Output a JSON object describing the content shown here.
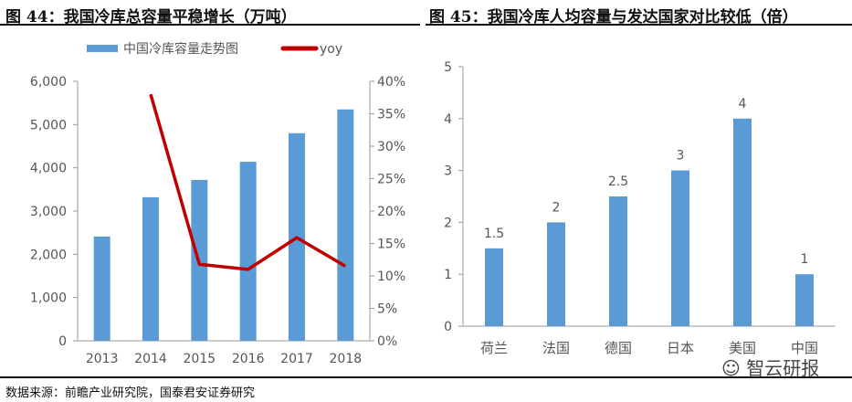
{
  "left": {
    "title": "图 44：我国冷库总容量平稳增长（万吨）",
    "chart_data": {
      "type": "bar",
      "categories": [
        "2013",
        "2014",
        "2015",
        "2016",
        "2017",
        "2018"
      ],
      "series": [
        {
          "name": "中国冷库容量走势图",
          "type": "bar",
          "axis": "left",
          "color": "#5B9BD5",
          "values": [
            2411,
            3320,
            3720,
            4140,
            4800,
            5350
          ]
        },
        {
          "name": "yoy",
          "type": "line",
          "axis": "right",
          "color": "#C00000",
          "values": [
            null,
            38,
            11.8,
            11,
            15.9,
            11.5
          ]
        }
      ],
      "ylim": [
        0,
        6000
      ],
      "yticks": [
        "0",
        "1,000",
        "2,000",
        "3,000",
        "4,000",
        "5,000",
        "6,000"
      ],
      "y2lim": [
        0,
        40
      ],
      "y2ticks": [
        "0%",
        "5%",
        "10%",
        "15%",
        "20%",
        "25%",
        "30%",
        "35%",
        "40%"
      ],
      "legend": "top"
    }
  },
  "right": {
    "title": "图 45：我国冷库人均容量与发达国家对比较低（倍）",
    "chart_data": {
      "type": "bar",
      "categories": [
        "荷兰",
        "法国",
        "德国",
        "日本",
        "美国",
        "中国"
      ],
      "values": [
        1.5,
        2,
        2.5,
        3,
        4,
        1
      ],
      "labels": [
        "1.5",
        "2",
        "2.5",
        "3",
        "4",
        "1"
      ],
      "color": "#5B9BD5",
      "ylim": [
        0,
        5
      ],
      "yticks": [
        "0",
        "1",
        "2",
        "3",
        "4",
        "5"
      ]
    }
  },
  "footer": "数据来源：前瞻产业研究院，国泰君安证券研究",
  "watermark": "智云研报"
}
